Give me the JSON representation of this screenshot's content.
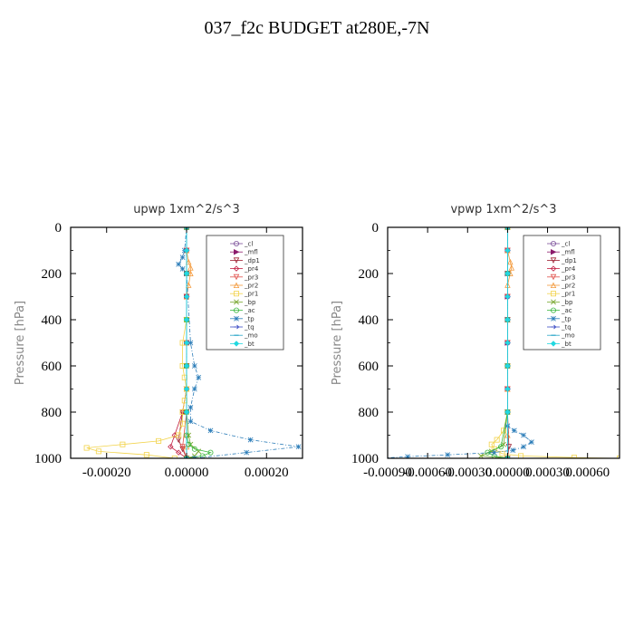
{
  "figure": {
    "title": "037_f2c  BUDGET at280E,-7N"
  },
  "chart_data": [
    {
      "type": "line",
      "title": "upwp   1xm^2/s^3",
      "ylabel": "Pressure [hPa]",
      "xlabel": "",
      "xlim": [
        -0.00029,
        0.00029
      ],
      "ylim": [
        1000,
        0
      ],
      "xticks": [
        -0.0002,
        0.0,
        0.0002
      ],
      "xtick_labels": [
        "-0.00020",
        "0.00000",
        "0.00020"
      ],
      "yticks": [
        0,
        200,
        400,
        600,
        800,
        1000
      ],
      "ytick_labels": [
        "0",
        "200",
        "400",
        "600",
        "800",
        "1000"
      ],
      "legend_position": "top-right",
      "series": [
        {
          "name": "_cl",
          "color": "#7a4f9a",
          "marker": "circle",
          "x": [
            0.0,
            0.0,
            0.0,
            0.0,
            0.0,
            0.0,
            0.0,
            0.0,
            0.0,
            0.0
          ],
          "y": [
            0,
            100,
            200,
            300,
            400,
            500,
            600,
            700,
            800,
            1000
          ]
        },
        {
          "name": "_mfl",
          "color": "#8b1a6b",
          "marker": "triangle-right",
          "x": [
            0.0,
            0.0,
            0.0,
            0.0,
            0.0,
            0.0,
            0.0,
            0.0,
            0.0,
            0.0
          ],
          "y": [
            0,
            100,
            200,
            300,
            400,
            500,
            600,
            700,
            800,
            1000
          ]
        },
        {
          "name": "_dp1",
          "color": "#9c1c2e",
          "marker": "triangle-down",
          "x": [
            0.0,
            0.0,
            0.0,
            0.0,
            0.0,
            0.0,
            0.0,
            0.0,
            -1e-05,
            -2e-05,
            -1e-05,
            0.0
          ],
          "y": [
            0,
            100,
            200,
            300,
            400,
            500,
            600,
            700,
            800,
            920,
            960,
            1000
          ]
        },
        {
          "name": "_pr4",
          "color": "#c21c40",
          "marker": "diamond",
          "x": [
            0.0,
            0.0,
            0.0,
            0.0,
            0.0,
            0.0,
            0.0,
            0.0,
            -1e-05,
            -3e-05,
            -4e-05,
            -2e-05,
            0.0
          ],
          "y": [
            0,
            100,
            200,
            300,
            400,
            500,
            600,
            700,
            800,
            900,
            950,
            975,
            1000
          ]
        },
        {
          "name": "_pr3",
          "color": "#e0504a",
          "marker": "triangle-down",
          "x": [
            0.0,
            0.0,
            0.0,
            0.0,
            0.0,
            0.0,
            0.0,
            0.0,
            0.0,
            -1e-05,
            0.0
          ],
          "y": [
            0,
            100,
            200,
            300,
            400,
            500,
            600,
            700,
            800,
            950,
            1000
          ]
        },
        {
          "name": "_pr2",
          "color": "#f39a3c",
          "marker": "triangle-up",
          "x": [
            0.0,
            0.0,
            5e-06,
            1e-05,
            1e-05,
            5e-06,
            0.0,
            0.0,
            0.0,
            0.0,
            0.0,
            0.0
          ],
          "y": [
            0,
            100,
            150,
            175,
            200,
            250,
            300,
            500,
            700,
            900,
            950,
            1000
          ]
        },
        {
          "name": "_pr1",
          "color": "#f2d34a",
          "marker": "square",
          "x": [
            0.0,
            0.0,
            -1e-05,
            -1e-05,
            -5e-06,
            0.0,
            -5e-06,
            -1e-05,
            -1e-05,
            -2e-05,
            -7e-05,
            -0.00016,
            -0.00025,
            -0.00022,
            -0.0001,
            -3e-05
          ],
          "y": [
            0,
            400,
            500,
            600,
            650,
            700,
            750,
            800,
            850,
            900,
            925,
            940,
            955,
            970,
            985,
            1000
          ]
        },
        {
          "name": "_bp",
          "color": "#7aa832",
          "marker": "x",
          "x": [
            0.0,
            0.0,
            0.0,
            0.0,
            0.0,
            5e-06,
            1e-05,
            3e-05,
            2e-05,
            0.0
          ],
          "y": [
            0,
            200,
            400,
            600,
            800,
            900,
            940,
            970,
            990,
            1000
          ]
        },
        {
          "name": "_ac",
          "color": "#3cb840",
          "marker": "circle",
          "x": [
            0.0,
            0.0,
            0.0,
            0.0,
            0.0,
            0.0,
            5e-06,
            2e-05,
            6e-05,
            4e-05,
            0.0
          ],
          "y": [
            0,
            200,
            400,
            600,
            800,
            900,
            940,
            960,
            975,
            990,
            1000
          ]
        },
        {
          "name": "_tp",
          "color": "#2a7cb8",
          "marker": "star",
          "x": [
            0.0,
            -5e-06,
            -1e-05,
            -2e-05,
            -1e-05,
            0.0,
            1e-05,
            2e-05,
            3e-05,
            2e-05,
            1e-05,
            1e-05,
            6e-05,
            0.00016,
            0.00028,
            0.00015,
            2e-05
          ],
          "y": [
            0,
            100,
            130,
            160,
            180,
            200,
            500,
            600,
            650,
            700,
            780,
            840,
            880,
            920,
            950,
            975,
            1000
          ]
        },
        {
          "name": "_tq",
          "color": "#3c4cc4",
          "marker": "arrow",
          "x": [
            0.0,
            0.0,
            0.0,
            0.0,
            0.0,
            0.0,
            0.0,
            0.0,
            0.0,
            0.0
          ],
          "y": [
            0,
            100,
            200,
            300,
            400,
            500,
            600,
            700,
            800,
            1000
          ]
        },
        {
          "name": "_mo",
          "color": "#2aa6c8",
          "marker": "dash",
          "x": [
            0.0,
            0.0,
            0.0,
            0.0,
            0.0,
            0.0,
            0.0,
            0.0,
            0.0,
            0.0
          ],
          "y": [
            0,
            100,
            200,
            300,
            400,
            500,
            600,
            700,
            800,
            1000
          ]
        },
        {
          "name": "_bt",
          "color": "#22d8e0",
          "marker": "diamond-filled",
          "x": [
            0.0,
            0.0,
            0.0,
            0.0,
            0.0,
            0.0,
            0.0,
            0.0,
            0.0,
            0.0
          ],
          "y": [
            0,
            100,
            200,
            300,
            400,
            500,
            600,
            700,
            800,
            1000
          ]
        }
      ]
    },
    {
      "type": "line",
      "title": "vpwp   1xm^2/s^3",
      "ylabel": "Pressure [hPa]",
      "xlabel": "",
      "xlim": [
        -0.0009,
        0.00084
      ],
      "ylim": [
        1000,
        0
      ],
      "xticks": [
        -0.0009,
        -0.0006,
        -0.0003,
        0.0,
        0.0003,
        0.0006
      ],
      "xtick_labels": [
        "-0.00090",
        "-0.00060",
        "-0.00030",
        "0.00000",
        "0.00030",
        "0.00060"
      ],
      "yticks": [
        0,
        200,
        400,
        600,
        800,
        1000
      ],
      "ytick_labels": [
        "0",
        "200",
        "400",
        "600",
        "800",
        "1000"
      ],
      "legend_position": "top-right",
      "series": [
        {
          "name": "_cl",
          "color": "#7a4f9a",
          "marker": "circle",
          "x": [
            0.0,
            0.0,
            0.0,
            0.0,
            0.0,
            0.0,
            0.0,
            0.0,
            0.0,
            0.0
          ],
          "y": [
            0,
            100,
            200,
            300,
            400,
            500,
            600,
            700,
            800,
            1000
          ]
        },
        {
          "name": "_mfl",
          "color": "#8b1a6b",
          "marker": "triangle-right",
          "x": [
            0.0,
            0.0,
            0.0,
            0.0,
            0.0,
            0.0,
            0.0,
            0.0,
            0.0,
            0.0
          ],
          "y": [
            0,
            100,
            200,
            300,
            400,
            500,
            600,
            700,
            800,
            1000
          ]
        },
        {
          "name": "_dp1",
          "color": "#9c1c2e",
          "marker": "triangle-down",
          "x": [
            0.0,
            0.0,
            0.0,
            0.0,
            0.0,
            0.0,
            0.0,
            0.0,
            0.0,
            1e-05,
            0.0
          ],
          "y": [
            0,
            100,
            200,
            300,
            400,
            500,
            600,
            700,
            800,
            950,
            1000
          ]
        },
        {
          "name": "_pr4",
          "color": "#c21c40",
          "marker": "diamond",
          "x": [
            0.0,
            0.0,
            0.0,
            0.0,
            0.0,
            0.0,
            0.0,
            0.0,
            0.0,
            0.0
          ],
          "y": [
            0,
            100,
            200,
            300,
            400,
            500,
            600,
            700,
            800,
            1000
          ]
        },
        {
          "name": "_pr3",
          "color": "#e0504a",
          "marker": "triangle-down",
          "x": [
            0.0,
            0.0,
            0.0,
            0.0,
            0.0,
            0.0,
            0.0,
            0.0,
            0.0,
            0.0
          ],
          "y": [
            0,
            100,
            200,
            300,
            400,
            500,
            600,
            700,
            800,
            1000
          ]
        },
        {
          "name": "_pr2",
          "color": "#f39a3c",
          "marker": "triangle-up",
          "x": [
            0.0,
            0.0,
            2e-05,
            3e-05,
            2e-05,
            0.0,
            0.0,
            0.0,
            0.0,
            0.0
          ],
          "y": [
            0,
            100,
            150,
            175,
            200,
            250,
            400,
            700,
            900,
            1000
          ]
        },
        {
          "name": "_pr1",
          "color": "#f2d34a",
          "marker": "square",
          "x": [
            0.0,
            0.0,
            0.0,
            -3e-05,
            -8e-05,
            -0.00012,
            -0.0001,
            -4e-05,
            0.0001,
            0.0005,
            0.00084
          ],
          "y": [
            0,
            600,
            800,
            880,
            920,
            940,
            960,
            980,
            990,
            997,
            1000
          ]
        },
        {
          "name": "_bp",
          "color": "#7aa832",
          "marker": "x",
          "x": [
            0.0,
            0.0,
            0.0,
            0.0,
            0.0,
            -3e-05,
            -0.00012,
            -0.0002,
            0.0
          ],
          "y": [
            0,
            200,
            400,
            600,
            800,
            940,
            970,
            990,
            1000
          ]
        },
        {
          "name": "_ac",
          "color": "#3cb840",
          "marker": "circle",
          "x": [
            0.0,
            0.0,
            0.0,
            0.0,
            0.0,
            -5e-05,
            -0.00015,
            -0.0001,
            0.0
          ],
          "y": [
            0,
            200,
            400,
            600,
            800,
            950,
            975,
            990,
            1000
          ]
        },
        {
          "name": "_tp",
          "color": "#2a7cb8",
          "marker": "star",
          "x": [
            0.0,
            0.0,
            0.0,
            0.0,
            0.0,
            0.0,
            5e-05,
            0.00012,
            0.00018,
            0.00012,
            4e-05,
            -0.0001,
            -0.00045,
            -0.00075,
            -0.00095
          ],
          "y": [
            0,
            200,
            400,
            600,
            800,
            860,
            880,
            900,
            930,
            950,
            965,
            975,
            985,
            993,
            1000
          ]
        },
        {
          "name": "_tq",
          "color": "#3c4cc4",
          "marker": "arrow",
          "x": [
            0.0,
            0.0,
            0.0,
            0.0,
            0.0,
            0.0,
            0.0,
            0.0,
            0.0,
            0.0
          ],
          "y": [
            0,
            100,
            200,
            300,
            400,
            500,
            600,
            700,
            800,
            1000
          ]
        },
        {
          "name": "_mo",
          "color": "#2aa6c8",
          "marker": "dash",
          "x": [
            0.0,
            0.0,
            0.0,
            0.0,
            0.0,
            0.0,
            0.0,
            0.0,
            0.0,
            0.0
          ],
          "y": [
            0,
            100,
            200,
            300,
            400,
            500,
            600,
            700,
            800,
            1000
          ]
        },
        {
          "name": "_bt",
          "color": "#22d8e0",
          "marker": "diamond-filled",
          "x": [
            0.0,
            0.0,
            0.0,
            0.0,
            0.0,
            0.0,
            0.0,
            0.0,
            0.0,
            0.0
          ],
          "y": [
            0,
            100,
            200,
            300,
            400,
            500,
            600,
            700,
            800,
            1000
          ]
        }
      ]
    }
  ]
}
